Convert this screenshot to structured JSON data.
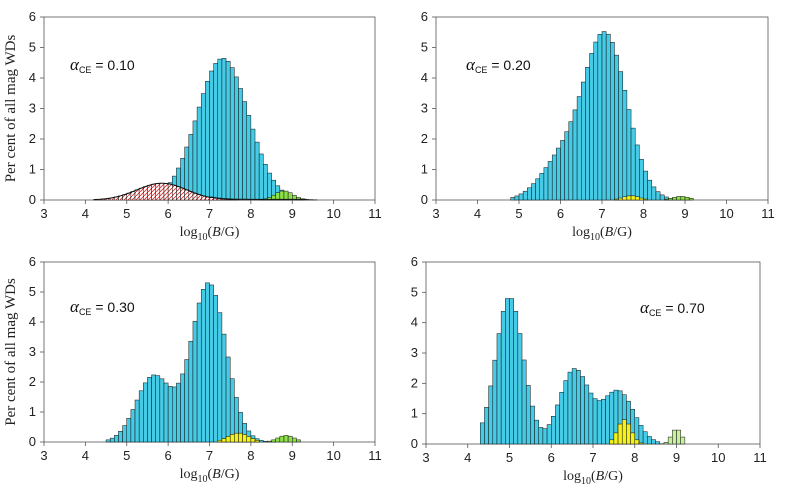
{
  "y_axis_label": "Per cent of all mag WDs",
  "x_axis_label": {
    "prefix": "log",
    "sub": "10",
    "open": "(",
    "var": "B",
    "rest": "/G)"
  },
  "colors": {
    "main": "#45cbe6",
    "yellow": "#f4f21a",
    "green": "#8ee04a",
    "red_hatch": "#e03030",
    "lightgreen": "#c8f0a0"
  },
  "chart_data": [
    {
      "type": "bar",
      "title": "",
      "annotation": {
        "symbol": "α",
        "subscript": "CE",
        "text": " = 0.10"
      },
      "xlabel": "log10(B/G)",
      "ylabel": "Per cent of all mag WDs",
      "xlim": [
        3,
        11
      ],
      "ylim": [
        0,
        6
      ],
      "xticks": [
        "3",
        "4",
        "5",
        "6",
        "7",
        "8",
        "9",
        "10",
        "11"
      ],
      "yticks": [
        "0",
        "1",
        "2",
        "3",
        "4",
        "5",
        "6"
      ],
      "series": [
        {
          "name": "main",
          "kind": "gauss",
          "components": [
            [
              4.65,
              7.32,
              0.62
            ]
          ],
          "range": [
            4.6,
            9.9
          ]
        },
        {
          "name": "hatched",
          "kind": "gauss",
          "components": [
            [
              0.55,
              5.85,
              0.6
            ]
          ],
          "range": [
            4.2,
            7.9
          ]
        },
        {
          "name": "green",
          "kind": "gauss",
          "components": [
            [
              0.3,
              8.8,
              0.22
            ]
          ],
          "range": [
            8.2,
            9.3
          ]
        }
      ]
    },
    {
      "type": "bar",
      "title": "",
      "annotation": {
        "symbol": "α",
        "subscript": "CE",
        "text": " = 0.20"
      },
      "xlabel": "log10(B/G)",
      "ylabel": "",
      "xlim": [
        3,
        11
      ],
      "ylim": [
        0,
        6
      ],
      "xticks": [
        "3",
        "4",
        "5",
        "6",
        "7",
        "8",
        "9",
        "10",
        "11"
      ],
      "yticks": [
        "0",
        "1",
        "2",
        "3",
        "4",
        "5",
        "6"
      ],
      "series": [
        {
          "name": "main",
          "kind": "gauss",
          "components": [
            [
              5.4,
              7.08,
              0.52
            ],
            [
              1.2,
              6.0,
              0.5
            ]
          ],
          "range": [
            4.8,
            9.5
          ]
        },
        {
          "name": "yellow",
          "kind": "gauss",
          "components": [
            [
              0.14,
              7.7,
              0.2
            ]
          ],
          "range": [
            7.3,
            8.1
          ]
        },
        {
          "name": "green",
          "kind": "gauss",
          "components": [
            [
              0.12,
              8.9,
              0.2
            ]
          ],
          "range": [
            8.5,
            9.2
          ]
        }
      ]
    },
    {
      "type": "bar",
      "title": "",
      "annotation": {
        "symbol": "α",
        "subscript": "CE",
        "text": " = 0.30"
      },
      "xlabel": "log10(B/G)",
      "ylabel": "Per cent of all mag WDs",
      "xlim": [
        3,
        11
      ],
      "ylim": [
        0,
        6
      ],
      "xticks": [
        "3",
        "4",
        "5",
        "6",
        "7",
        "8",
        "9",
        "10",
        "11"
      ],
      "yticks": [
        "0",
        "1",
        "2",
        "3",
        "4",
        "5",
        "6"
      ],
      "series": [
        {
          "name": "main",
          "kind": "gauss",
          "components": [
            [
              2.2,
              5.65,
              0.42
            ],
            [
              5.3,
              6.98,
              0.42
            ]
          ],
          "range": [
            4.5,
            9.3
          ]
        },
        {
          "name": "yellow",
          "kind": "gauss",
          "components": [
            [
              0.3,
              7.7,
              0.25
            ]
          ],
          "range": [
            7.2,
            8.2
          ]
        },
        {
          "name": "green",
          "kind": "gauss",
          "components": [
            [
              0.22,
              8.85,
              0.2
            ]
          ],
          "range": [
            8.4,
            9.2
          ]
        }
      ]
    },
    {
      "type": "bar",
      "title": "",
      "annotation": {
        "symbol": "α",
        "subscript": "CE",
        "text": " = 0.70"
      },
      "xlabel": "log10(B/G)",
      "ylabel": "",
      "xlim": [
        3,
        11
      ],
      "ylim": [
        0,
        6
      ],
      "xticks": [
        "3",
        "4",
        "5",
        "6",
        "7",
        "8",
        "9",
        "10",
        "11"
      ],
      "yticks": [
        "0",
        "1",
        "2",
        "3",
        "4",
        "5",
        "6"
      ],
      "series": [
        {
          "name": "main",
          "kind": "gauss",
          "components": [
            [
              4.85,
              5.0,
              0.33
            ],
            [
              2.45,
              6.55,
              0.35
            ],
            [
              1.75,
              7.6,
              0.38
            ]
          ],
          "range": [
            4.3,
            8.6
          ]
        },
        {
          "name": "yellow",
          "kind": "gauss",
          "components": [
            [
              0.8,
              7.75,
              0.16
            ]
          ],
          "range": [
            7.4,
            8.2
          ]
        },
        {
          "name": "lightgreen",
          "kind": "gauss",
          "components": [
            [
              0.5,
              9.0,
              0.12
            ]
          ],
          "range": [
            8.5,
            9.2
          ]
        }
      ]
    }
  ]
}
